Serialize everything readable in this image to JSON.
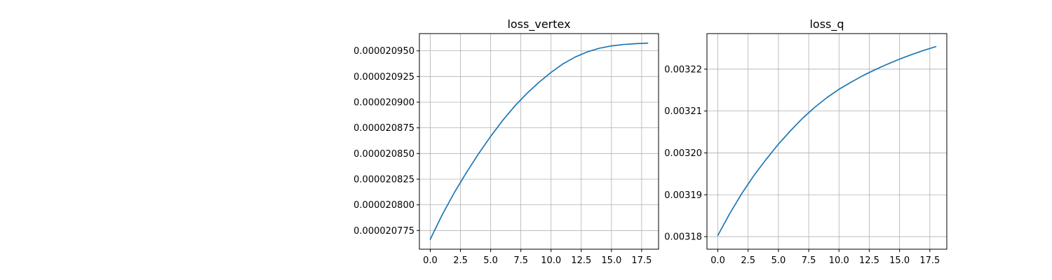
{
  "colors": {
    "line": "#1f77b4",
    "grid": "#b0b0b0",
    "axes": "#000000",
    "background": "#ffffff"
  },
  "chart_data": [
    {
      "type": "line",
      "title": "loss_vertex",
      "xlabel": "",
      "ylabel": "",
      "grid": true,
      "xlim": [
        -0.9,
        18.9
      ],
      "ylim": [
        2.07568e-05,
        2.09668e-05
      ],
      "xticks": [
        0.0,
        2.5,
        5.0,
        7.5,
        10.0,
        12.5,
        15.0,
        17.5
      ],
      "xtick_labels": [
        "0.0",
        "2.5",
        "5.0",
        "7.5",
        "10.0",
        "12.5",
        "15.0",
        "17.5"
      ],
      "yticks": [
        2.0775e-05,
        2.08e-05,
        2.0825e-05,
        2.085e-05,
        2.0875e-05,
        2.09e-05,
        2.0925e-05,
        2.095e-05
      ],
      "ytick_labels": [
        "0.000020775",
        "0.000020800",
        "0.000020825",
        "0.000020850",
        "0.000020875",
        "0.000020900",
        "0.000020925",
        "0.000020950"
      ],
      "series": [
        {
          "x": [
            0,
            1,
            2,
            3,
            4,
            5,
            6,
            7,
            8,
            9,
            10,
            11,
            12,
            13,
            14,
            15,
            16,
            17,
            18
          ],
          "y": [
            2.07664e-05,
            2.07906e-05,
            2.08121e-05,
            2.08316e-05,
            2.08498e-05,
            2.08667e-05,
            2.08823e-05,
            2.08963e-05,
            2.09085e-05,
            2.09194e-05,
            2.0929e-05,
            2.09374e-05,
            2.0944e-05,
            2.0949e-05,
            2.09525e-05,
            2.09548e-05,
            2.09562e-05,
            2.0957e-05,
            2.09575e-05
          ]
        }
      ]
    },
    {
      "type": "line",
      "title": "loss_q",
      "xlabel": "",
      "ylabel": "",
      "grid": true,
      "xlim": [
        -0.9,
        18.9
      ],
      "ylim": [
        0.003177,
        0.0032285
      ],
      "xticks": [
        0.0,
        2.5,
        5.0,
        7.5,
        10.0,
        12.5,
        15.0,
        17.5
      ],
      "xtick_labels": [
        "0.0",
        "2.5",
        "5.0",
        "7.5",
        "10.0",
        "12.5",
        "15.0",
        "17.5"
      ],
      "yticks": [
        0.00318,
        0.00319,
        0.0032,
        0.00321,
        0.00322
      ],
      "ytick_labels": [
        "0.00318",
        "0.00319",
        "0.00320",
        "0.00321",
        "0.00322"
      ],
      "series": [
        {
          "x": [
            0,
            1,
            2,
            3,
            4,
            5,
            6,
            7,
            8,
            9,
            10,
            11,
            12,
            13,
            14,
            15,
            16,
            17,
            18
          ],
          "y": [
            0.0031803,
            0.0031856,
            0.0031904,
            0.0031947,
            0.0031985,
            0.0032021,
            0.0032053,
            0.0032083,
            0.0032109,
            0.0032132,
            0.0032152,
            0.0032169,
            0.0032185,
            0.0032199,
            0.0032212,
            0.0032224,
            0.0032235,
            0.0032245,
            0.0032254
          ]
        }
      ]
    }
  ]
}
